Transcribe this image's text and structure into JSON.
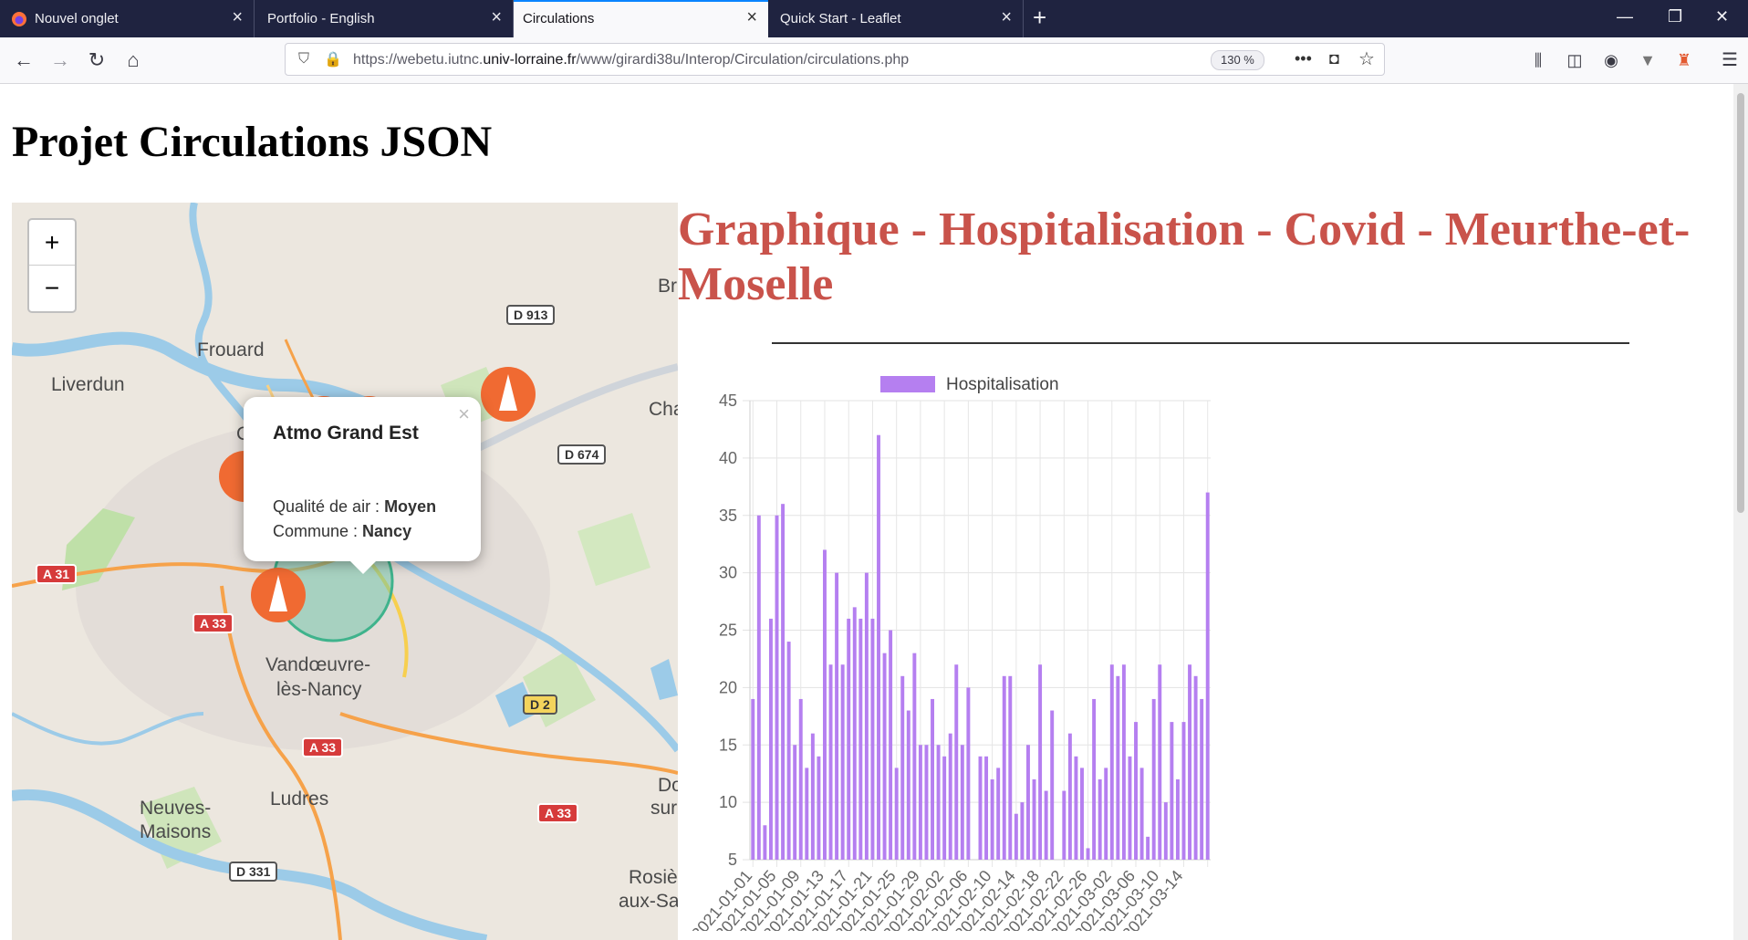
{
  "tabs": [
    {
      "label": "Nouvel onglet",
      "active": false
    },
    {
      "label": "Portfolio - English",
      "active": false
    },
    {
      "label": "Circulations",
      "active": true
    },
    {
      "label": "Quick Start - Leaflet",
      "active": false
    }
  ],
  "nav": {
    "url_prefix": "https://webetu.iutnc.",
    "url_domain": "univ-lorraine.fr",
    "url_path": "/www/girardi38u/Interop/Circulation/circulations.php",
    "zoom": "130 %"
  },
  "page": {
    "title": "Projet Circulations JSON",
    "chart_heading": "Graphique - Hospitalisation - Covid - Meurthe-et-Moselle"
  },
  "map": {
    "zoom_in": "+",
    "zoom_out": "−",
    "popup": {
      "title": "Atmo Grand Est",
      "air_label": "Qualité de air : ",
      "air_value": "Moyen",
      "commune_label": "Commune : ",
      "commune_value": "Nancy",
      "close": "×"
    },
    "places": [
      "Frouard",
      "Liverdun",
      "Vandœuvre-",
      "lès-Nancy",
      "Ludres",
      "Neuves-",
      "Maisons",
      "Br",
      "Cha",
      "Do",
      "sur",
      "Rosiè",
      "aux-Sa",
      "C"
    ],
    "roads": [
      "D 913",
      "D 674",
      "A 31",
      "A 33",
      "A 33",
      "A 33",
      "D 2",
      "D 331"
    ]
  },
  "chart_data": {
    "type": "bar",
    "legend_position": "top",
    "series": [
      {
        "name": "Hospitalisation",
        "color": "#b57ff0",
        "values": [
          19,
          35,
          8,
          26,
          35,
          36,
          24,
          15,
          19,
          13,
          16,
          14,
          32,
          22,
          30,
          22,
          26,
          27,
          26,
          30,
          26,
          42,
          23,
          25,
          13,
          21,
          18,
          23,
          15,
          15,
          19,
          15,
          14,
          16,
          22,
          15,
          20,
          5,
          14,
          14,
          12,
          13,
          21,
          21,
          9,
          10,
          15,
          12,
          22,
          11,
          18,
          5,
          11,
          16,
          14,
          13,
          6,
          19,
          12,
          13,
          22,
          21,
          22,
          14,
          17,
          13,
          7,
          19,
          22,
          10,
          17,
          12,
          17,
          22,
          21,
          19,
          37
        ]
      }
    ],
    "x_tick_labels": [
      "2021-01-01",
      "2021-01-05",
      "2021-01-09",
      "2021-01-13",
      "2021-01-17",
      "2021-01-21",
      "2021-01-25",
      "2021-01-29",
      "2021-02-02",
      "2021-02-06",
      "2021-02-10",
      "2021-02-14",
      "2021-02-18",
      "2021-02-22",
      "2021-02-26",
      "2021-03-02",
      "2021-03-06",
      "2021-03-10",
      "2021-03-14"
    ],
    "y_ticks": [
      5,
      10,
      15,
      20,
      25,
      30,
      35,
      40,
      45
    ],
    "ylim": [
      5,
      45
    ],
    "grid": true
  }
}
